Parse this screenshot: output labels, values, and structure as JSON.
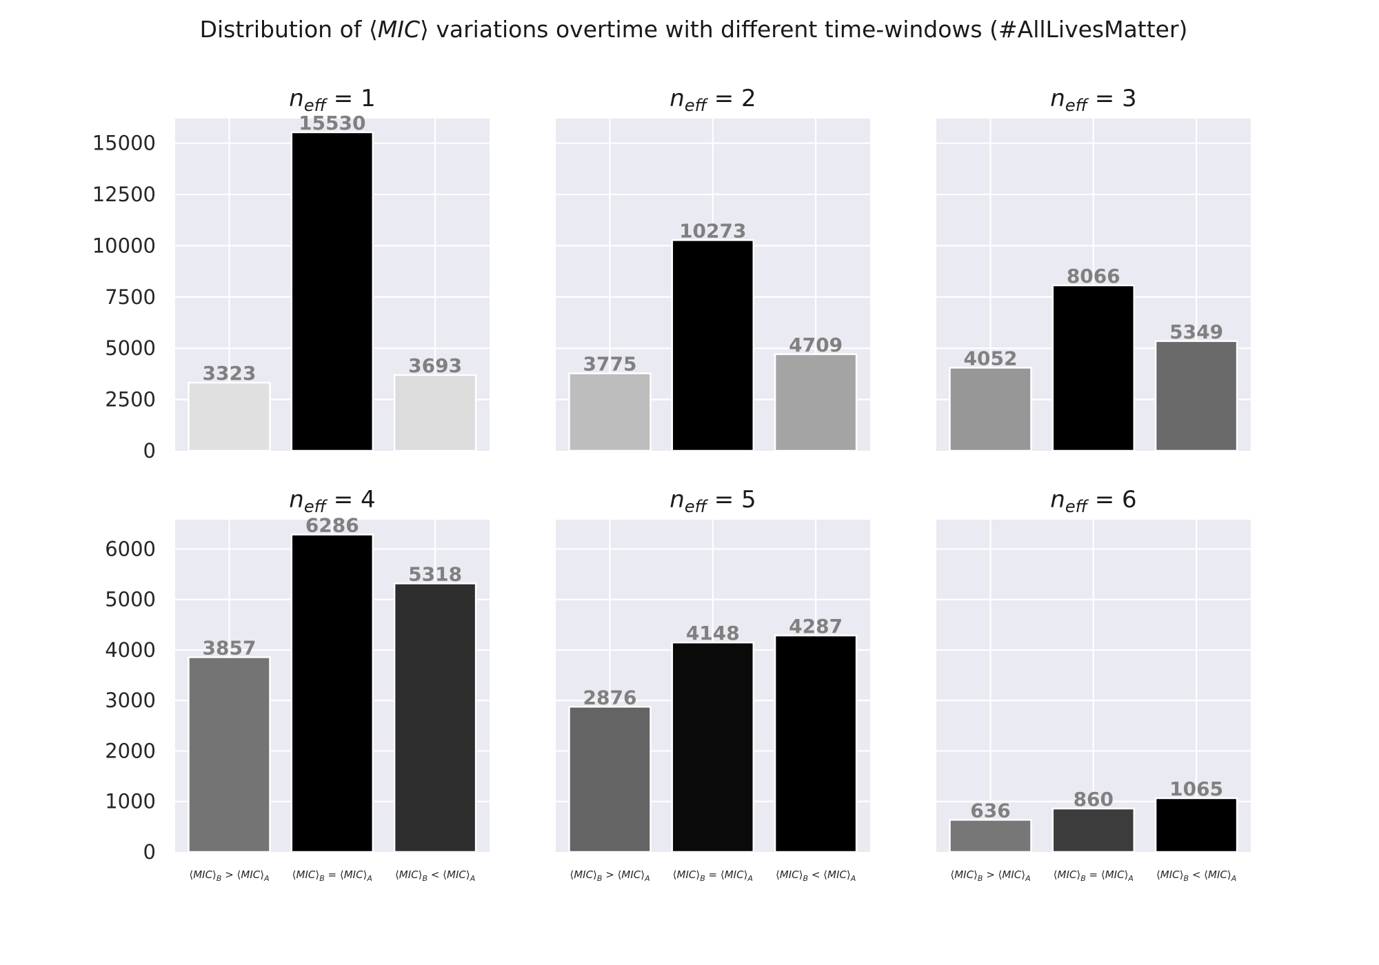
{
  "title": {
    "prefix": "Distribution of ⟨",
    "mic": "MIC",
    "suffix": "⟩ variations overtime with different time-windows (#AllLivesMatter)"
  },
  "chart_data": {
    "type": "bar",
    "categories": [
      "⟨MIC⟩B > ⟨MIC⟩A",
      "⟨MIC⟩B = ⟨MIC⟩A",
      "⟨MIC⟩B < ⟨MIC⟩A"
    ],
    "category_parts": [
      {
        "op": ">"
      },
      {
        "op": "="
      },
      {
        "op": "<"
      }
    ],
    "panels": [
      {
        "n_eff": "1",
        "values": [
          3323,
          15530,
          3693
        ],
        "colors": [
          "#e0e0e0",
          "#000000",
          "#dcdcdc"
        ],
        "ylim": [
          0,
          16200
        ],
        "yticks": [
          0,
          2500,
          5000,
          7500,
          10000,
          12500,
          15000
        ]
      },
      {
        "n_eff": "2",
        "values": [
          3775,
          10273,
          4709
        ],
        "colors": [
          "#bdbdbd",
          "#000000",
          "#a4a4a4"
        ],
        "ylim": [
          0,
          16200
        ],
        "yticks": [
          0,
          2500,
          5000,
          7500,
          10000,
          12500,
          15000
        ]
      },
      {
        "n_eff": "3",
        "values": [
          4052,
          8066,
          5349
        ],
        "colors": [
          "#979797",
          "#000000",
          "#6a6a6a"
        ],
        "ylim": [
          0,
          16200
        ],
        "yticks": [
          0,
          2500,
          5000,
          7500,
          10000,
          12500,
          15000
        ]
      },
      {
        "n_eff": "4",
        "values": [
          3857,
          6286,
          5318
        ],
        "colors": [
          "#747474",
          "#000000",
          "#2e2e2e"
        ],
        "ylim": [
          0,
          6580
        ],
        "yticks": [
          0,
          1000,
          2000,
          3000,
          4000,
          5000,
          6000
        ]
      },
      {
        "n_eff": "5",
        "values": [
          2876,
          4148,
          4287
        ],
        "colors": [
          "#646464",
          "#0a0a0a",
          "#000000"
        ],
        "ylim": [
          0,
          6580
        ],
        "yticks": [
          0,
          1000,
          2000,
          3000,
          4000,
          5000,
          6000
        ]
      },
      {
        "n_eff": "6",
        "values": [
          636,
          860,
          1065
        ],
        "colors": [
          "#777777",
          "#3c3c3c",
          "#000000"
        ],
        "ylim": [
          0,
          6580
        ],
        "yticks": [
          0,
          1000,
          2000,
          3000,
          4000,
          5000,
          6000
        ]
      }
    ],
    "grid": true,
    "sharey": "row",
    "background": "#eaeaf2",
    "label_color": "#808080"
  }
}
